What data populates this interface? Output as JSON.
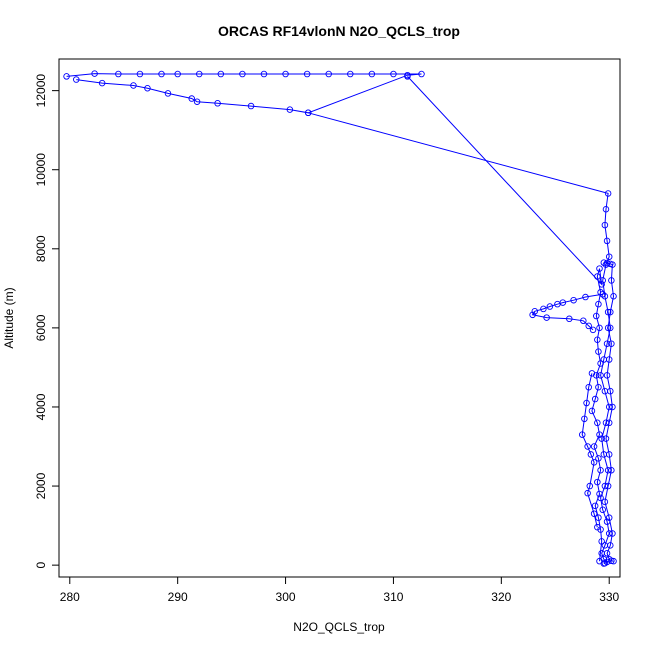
{
  "chart_data": {
    "type": "scatter",
    "title": "ORCAS RF14vlonN N2O_QCLS_trop",
    "xlabel": "N2O_QCLS_trop",
    "ylabel": "Altitude (m)",
    "xlim": [
      279,
      331
    ],
    "ylim": [
      -300,
      12800
    ],
    "xticks": [
      280,
      290,
      300,
      310,
      320,
      330
    ],
    "yticks": [
      0,
      2000,
      4000,
      6000,
      8000,
      10000,
      12000
    ],
    "grid": false,
    "legend": "none",
    "series_color": "#0000ff",
    "marker": "open-circle",
    "connected": true,
    "series": [
      {
        "x": [
          280.6,
          283.0,
          285.9,
          287.2,
          289.1,
          291.3,
          291.8,
          293.7,
          296.8,
          300.4,
          302.1,
          311.3,
          312.6,
          310.0,
          308.0,
          306.0,
          304.0,
          302.0,
          300.0,
          298.0,
          296.0,
          294.0,
          292.0,
          290.0,
          288.5,
          286.5,
          284.5,
          282.3,
          279.7
        ],
        "y": [
          12280,
          12190,
          12130,
          12060,
          11930,
          11800,
          11720,
          11680,
          11610,
          11520,
          11440,
          12390,
          12420,
          12420,
          12420,
          12420,
          12420,
          12420,
          12420,
          12420,
          12420,
          12420,
          12420,
          12420,
          12420,
          12420,
          12420,
          12430,
          12360
        ]
      },
      {
        "x": [
          302.1,
          329.9,
          329.7,
          329.6,
          329.8,
          330.0,
          329.7,
          329.4,
          329.6,
          329.9,
          330.1,
          329.8,
          329.5,
          329.2,
          329.6,
          330.0,
          329.7,
          329.3,
          329.5,
          329.9,
          329.6,
          329.2,
          329.4,
          329.8,
          330.0,
          329.6,
          329.3,
          329.5,
          329.8,
          329.6,
          329.5
        ],
        "y": [
          11440,
          9400,
          9000,
          8600,
          8200,
          7800,
          7600,
          7200,
          6800,
          6400,
          6000,
          5600,
          5200,
          4800,
          4400,
          4000,
          3600,
          3200,
          2800,
          2400,
          2000,
          1700,
          1400,
          1100,
          800,
          500,
          300,
          150,
          80,
          50,
          40
        ]
      },
      {
        "x": [
          311.3,
          329.3,
          329.1,
          328.9,
          329.2,
          329.0,
          328.8,
          329.1,
          328.9,
          329.0,
          329.2,
          328.8,
          329.0,
          328.7,
          328.4,
          328.9,
          329.1,
          328.6,
          329.0,
          329.2,
          328.9,
          329.1,
          328.7,
          329.0,
          329.2,
          329.3,
          329.1
        ],
        "y": [
          12360,
          7100,
          7500,
          7300,
          6900,
          6600,
          6300,
          6000,
          5700,
          5400,
          5100,
          4800,
          4500,
          4200,
          3900,
          3600,
          3300,
          3000,
          2700,
          2400,
          2100,
          1800,
          1500,
          1200,
          900,
          600,
          100
        ]
      },
      {
        "x": [
          329.4,
          327.8,
          326.7,
          325.7,
          325.2,
          324.5,
          323.9,
          323.1,
          322.9,
          324.2,
          326.3,
          327.6,
          328.1,
          328.5
        ],
        "y": [
          6850,
          6780,
          6700,
          6640,
          6600,
          6540,
          6480,
          6420,
          6330,
          6260,
          6230,
          6180,
          6050,
          5950
        ]
      },
      {
        "x": [
          328.4,
          328.1,
          327.9,
          327.7,
          327.5,
          328.0,
          328.3,
          328.6,
          328.2,
          328.0,
          328.6,
          328.9
        ],
        "y": [
          4850,
          4500,
          4100,
          3700,
          3300,
          3000,
          2800,
          2600,
          2000,
          1820,
          1300,
          960
        ]
      },
      {
        "x": [
          329.5,
          329.8,
          330.1,
          330.3,
          330.2,
          330.4,
          330.1,
          329.9,
          330.2,
          330.0,
          329.8,
          330.1,
          330.3,
          330.0,
          329.7,
          330.0,
          330.2,
          329.9,
          329.6,
          330.0,
          330.3,
          330.1,
          329.8,
          330.0,
          330.2,
          330.4
        ],
        "y": [
          7650,
          7640,
          7620,
          7600,
          7200,
          6800,
          6400,
          6000,
          5600,
          5200,
          4800,
          4400,
          4000,
          3600,
          3200,
          2800,
          2400,
          2000,
          1600,
          1200,
          800,
          500,
          300,
          150,
          110,
          100
        ]
      }
    ]
  }
}
